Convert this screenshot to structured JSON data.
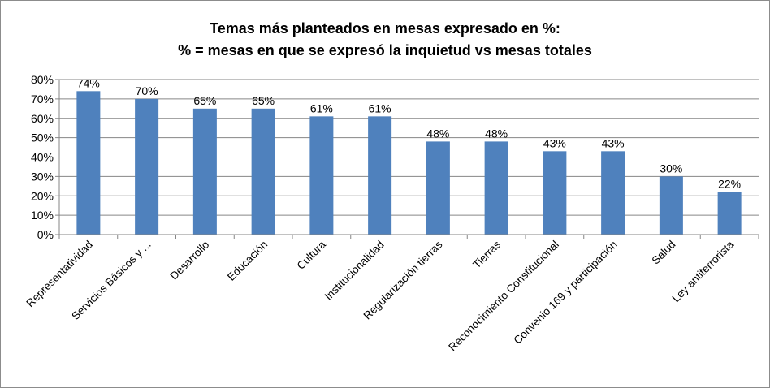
{
  "chart_data": {
    "type": "bar",
    "title": "Temas más planteados en mesas expresado en %:",
    "subtitle": "% = mesas en que se expresó la inquietud vs mesas totales",
    "categories": [
      "Representatividad",
      "Servicios Básicos y ...",
      "Desarrollo",
      "Educación",
      "Cultura",
      "Institucionalidad",
      "Regularización tierras",
      "Tierras",
      "Reconocimiento Constitucional",
      "Convenio 169 y participación",
      "Salud",
      "Ley antiterrorista"
    ],
    "values": [
      74,
      70,
      65,
      65,
      61,
      61,
      48,
      48,
      43,
      43,
      30,
      22
    ],
    "data_labels": [
      "74%",
      "70%",
      "65%",
      "65%",
      "61%",
      "61%",
      "48%",
      "48%",
      "43%",
      "43%",
      "30%",
      "22%"
    ],
    "ylim": [
      0,
      80
    ],
    "yticks": [
      "0%",
      "10%",
      "20%",
      "30%",
      "40%",
      "50%",
      "60%",
      "70%",
      "80%"
    ],
    "grid": true,
    "legend": "none",
    "bar_color": "#4F81BD"
  }
}
